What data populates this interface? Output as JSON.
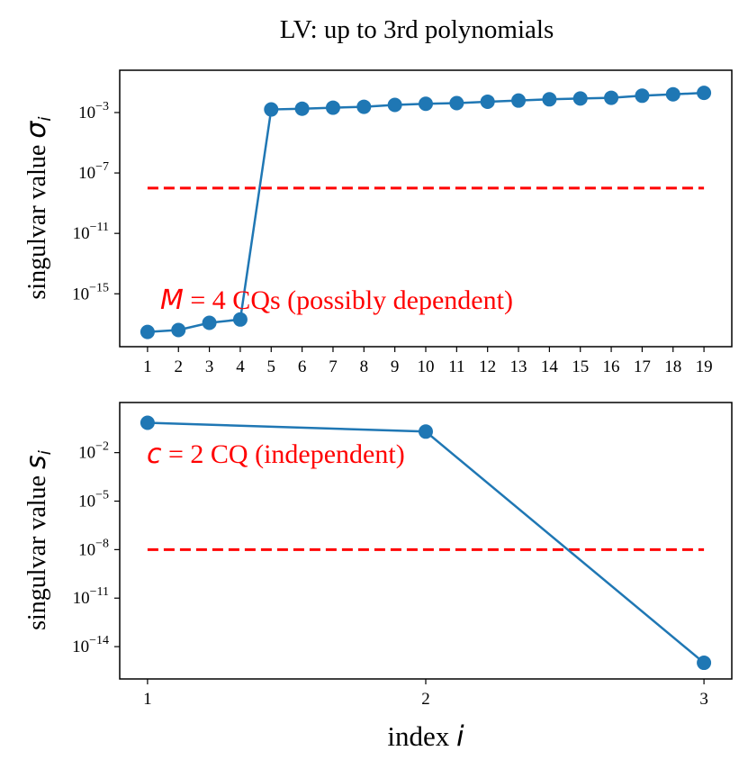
{
  "figure_title": "LV: up to 3rd polynomials",
  "xlabel_text": "index",
  "xlabel_symbol": "i",
  "colors": {
    "series": "#1f77b4",
    "threshold": "#ff0000",
    "annotation": "#ff0000",
    "axes": "#000000"
  },
  "chart_data": [
    {
      "type": "line",
      "yscale": "log",
      "ylabel_text": "singulvar value",
      "ylabel_symbol": "σ",
      "ylabel_sub": "i",
      "x": [
        1,
        2,
        3,
        4,
        5,
        6,
        7,
        8,
        9,
        10,
        11,
        12,
        13,
        14,
        15,
        16,
        17,
        18,
        19
      ],
      "y": [
        3e-18,
        4e-18,
        1.2e-17,
        2e-17,
        0.0016,
        0.0018,
        0.0021,
        0.0024,
        0.0032,
        0.0038,
        0.0042,
        0.0052,
        0.0062,
        0.0075,
        0.0085,
        0.0095,
        0.013,
        0.016,
        0.02
      ],
      "threshold": {
        "value": 1e-08,
        "x_range": [
          1,
          19
        ]
      },
      "xlim": [
        0.1,
        19.9
      ],
      "ylim_exp": [
        -18.5,
        -0.2
      ],
      "xticks": [
        1,
        2,
        3,
        4,
        5,
        6,
        7,
        8,
        9,
        10,
        11,
        12,
        13,
        14,
        15,
        16,
        17,
        18,
        19
      ],
      "xtick_labels": [
        "1",
        "2",
        "3",
        "4",
        "5",
        "6",
        "7",
        "8",
        "9",
        "10",
        "11",
        "12",
        "13",
        "14",
        "15",
        "16",
        "17",
        "18",
        "19"
      ],
      "yticks_exp": [
        -3,
        -7,
        -11,
        -15
      ],
      "ytick_labels": [
        "-3",
        "-7",
        "-11",
        "-15"
      ],
      "annotation": {
        "symbol": "M",
        "text": " = 4 CQs (possibly dependent)"
      }
    },
    {
      "type": "line",
      "yscale": "log",
      "ylabel_text": "singulvar value",
      "ylabel_symbol": "s",
      "ylabel_sub": "i",
      "x": [
        1,
        2,
        3
      ],
      "y": [
        0.7,
        0.2,
        1e-15
      ],
      "threshold": {
        "value": 1e-08,
        "x_range": [
          1,
          3
        ]
      },
      "xlim": [
        0.9,
        3.1
      ],
      "ylim_exp": [
        -16.0,
        1.1
      ],
      "xticks": [
        1,
        2,
        3
      ],
      "xtick_labels": [
        "1",
        "2",
        "3"
      ],
      "yticks_exp": [
        -2,
        -5,
        -8,
        -11,
        -14
      ],
      "ytick_labels": [
        "-2",
        "-5",
        "-8",
        "-11",
        "-14"
      ],
      "annotation": {
        "symbol": "c",
        "text": " = 2 CQ (independent)"
      }
    }
  ]
}
